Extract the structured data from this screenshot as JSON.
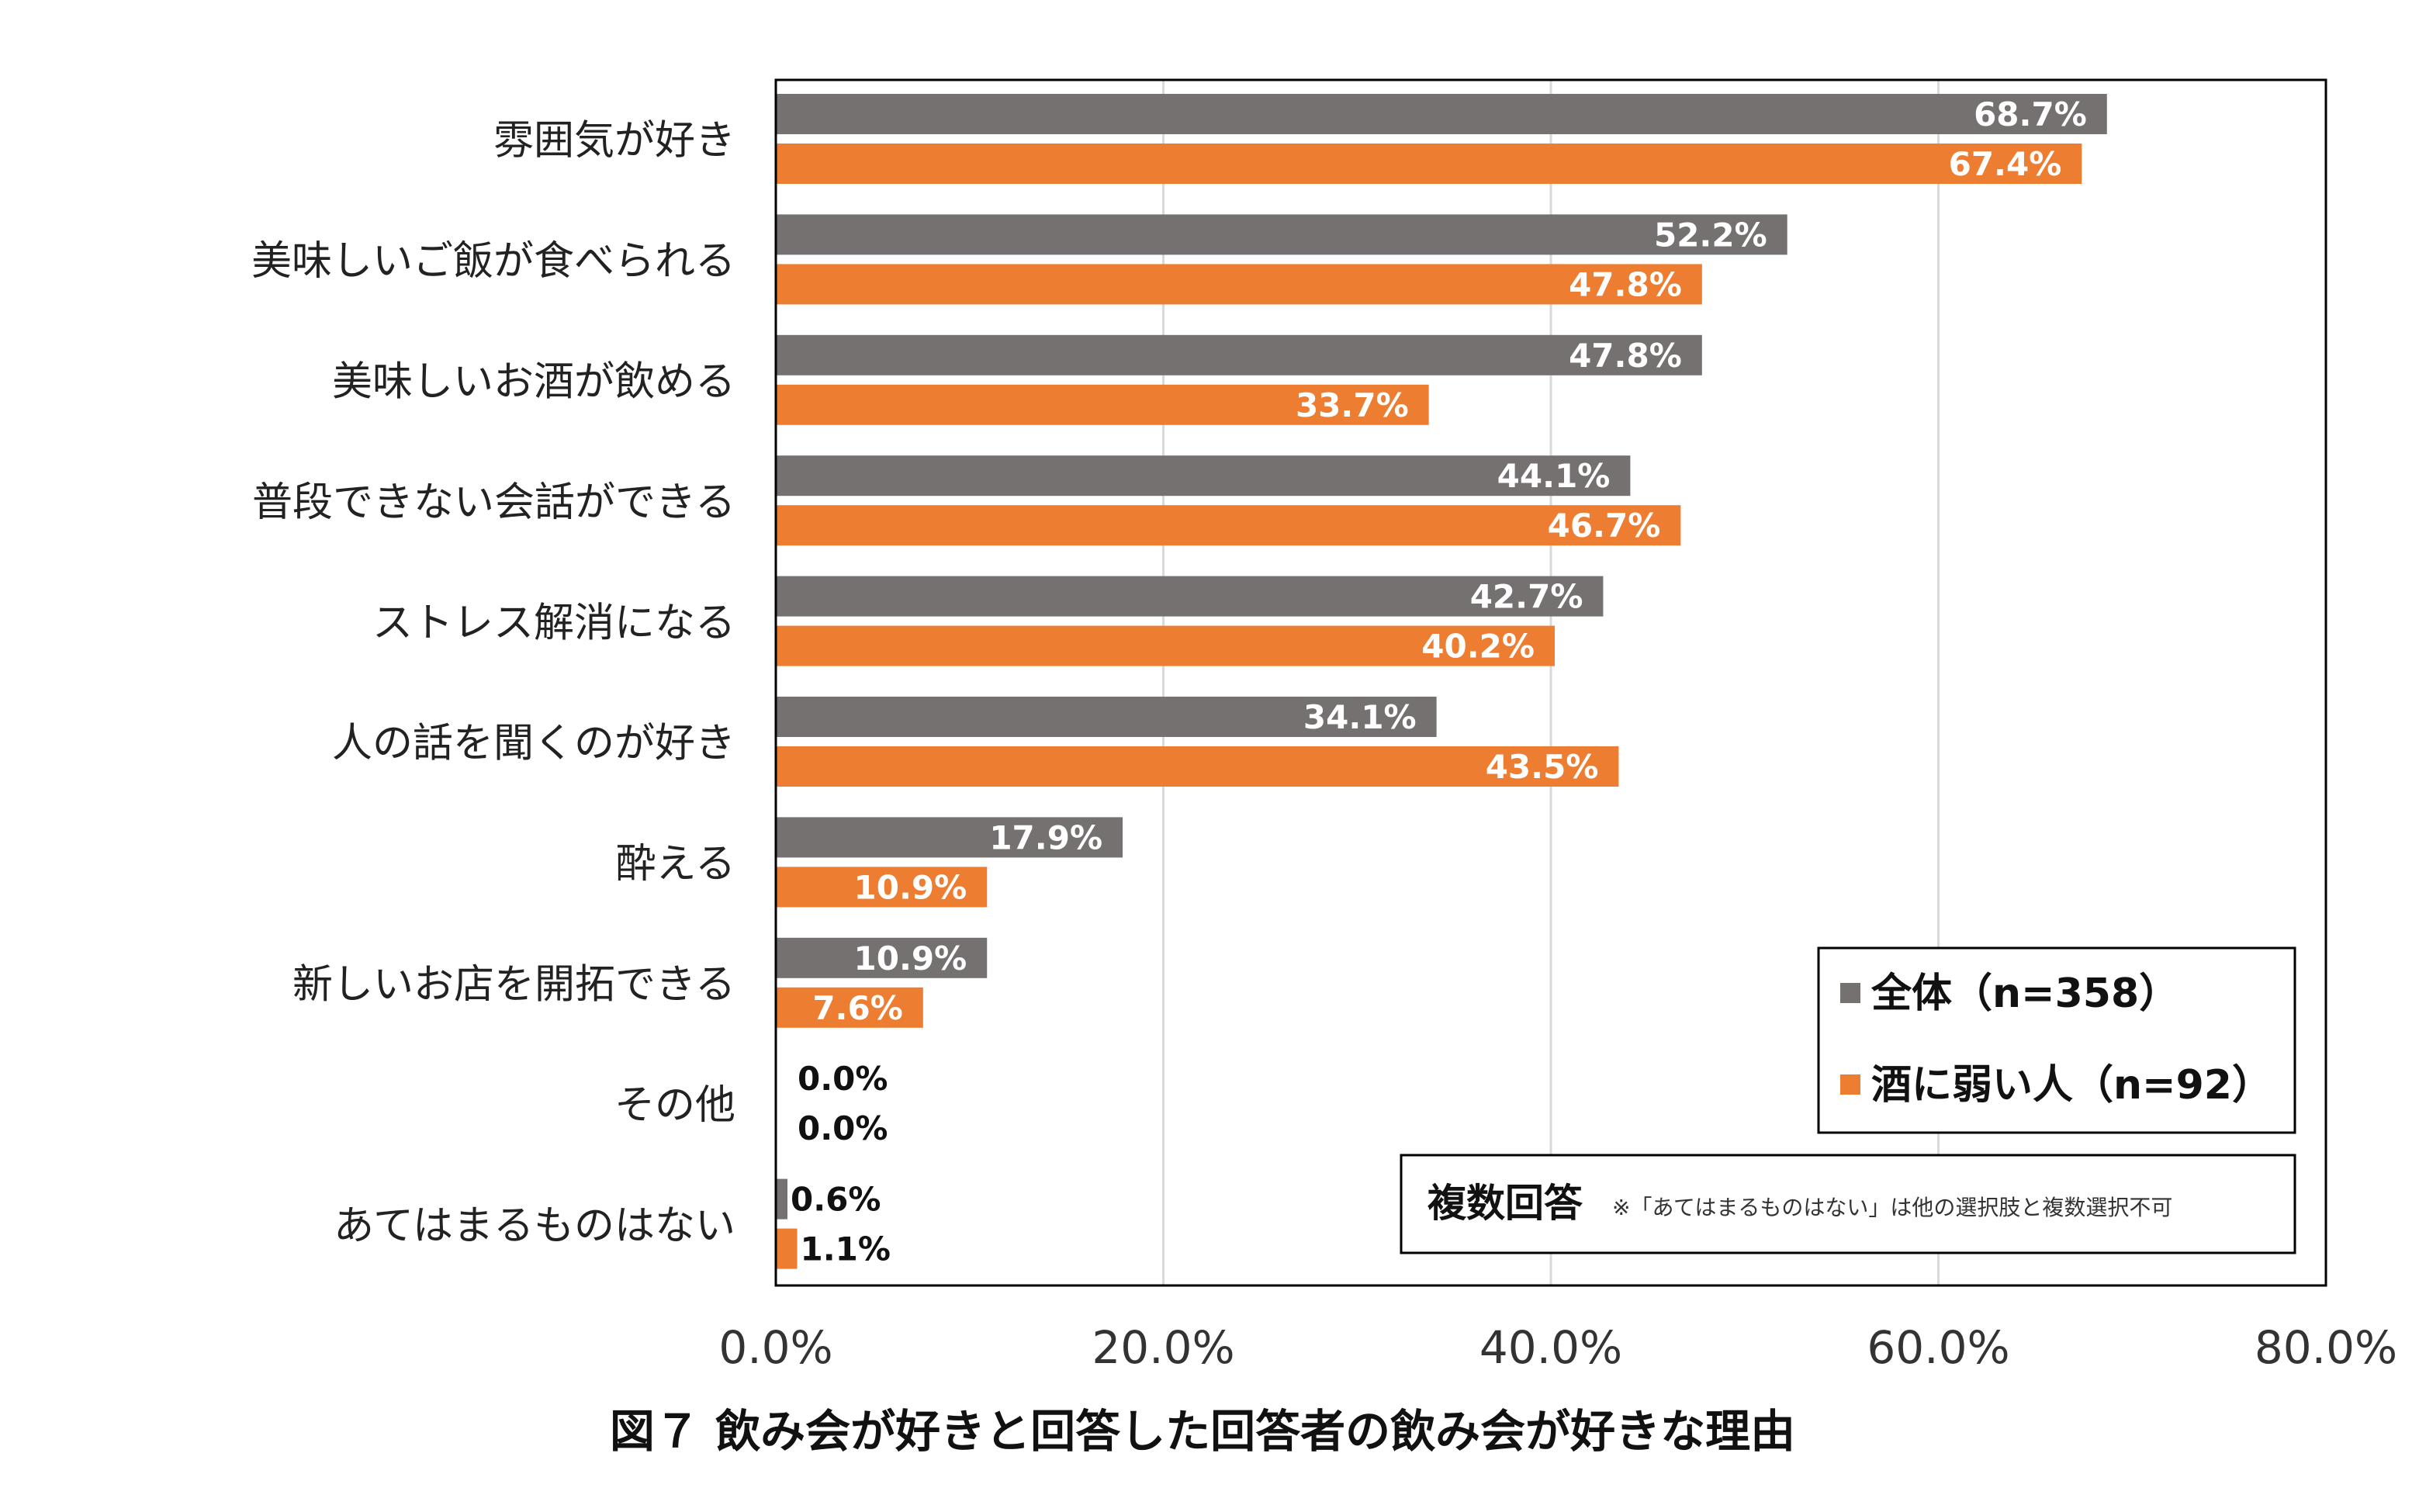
{
  "chart_data": {
    "type": "bar",
    "orientation": "horizontal",
    "title": "図７ 飲み会が好きと回答した回答者の飲み会が好きな理由",
    "categories": [
      "雰囲気が好き",
      "美味しいご飯が食べられる",
      "美味しいお酒が飲める",
      "普段できない会話ができる",
      "ストレス解消になる",
      "人の話を聞くのが好き",
      "酔える",
      "新しいお店を開拓できる",
      "その他",
      "あてはまるものはない"
    ],
    "series": [
      {
        "name": "全体（n=358）",
        "color": "#767171",
        "values": [
          68.7,
          52.2,
          47.8,
          44.1,
          42.7,
          34.1,
          17.9,
          10.9,
          0.0,
          0.6
        ],
        "labels": [
          "68.7%",
          "52.2%",
          "47.8%",
          "44.1%",
          "42.7%",
          "34.1%",
          "17.9%",
          "10.9%",
          "0.0%",
          "0.6%"
        ]
      },
      {
        "name": "酒に弱い人（n=92）",
        "color": "#ED7D31",
        "values": [
          67.4,
          47.8,
          33.7,
          46.7,
          40.2,
          43.5,
          10.9,
          7.6,
          0.0,
          1.1
        ],
        "labels": [
          "67.4%",
          "47.8%",
          "33.7%",
          "46.7%",
          "40.2%",
          "43.5%",
          "10.9%",
          "7.6%",
          "0.0%",
          "1.1%"
        ]
      }
    ],
    "xlim": [
      0,
      80
    ],
    "x_ticks": [
      0,
      20,
      40,
      60,
      80
    ],
    "x_tick_labels": [
      "0.0%",
      "20.0%",
      "40.0%",
      "60.0%",
      "80.0%"
    ],
    "grid": true,
    "legend_position": "bottom-right",
    "note": {
      "title": "複数回答",
      "text": "※「あてはまるものはない」は他の選択肢と複数選択不可"
    }
  }
}
